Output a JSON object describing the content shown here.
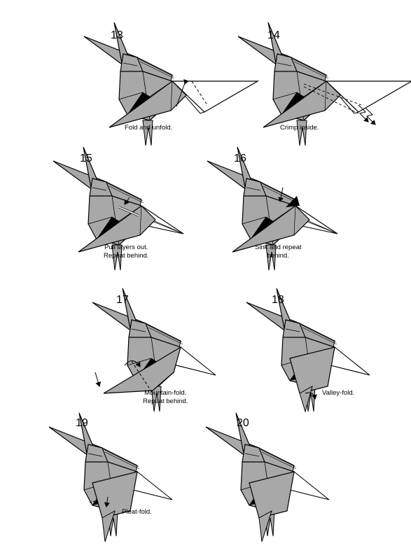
{
  "diagram": {
    "colors": {
      "paper": "#a8a8a8",
      "paper_light": "#ffffff",
      "ink": "#000000"
    },
    "steps": [
      {
        "number": "13",
        "caption": [
          "Fold and unfold."
        ]
      },
      {
        "number": "14",
        "caption": [
          "Crimp inside."
        ]
      },
      {
        "number": "15",
        "caption": [
          "Pull layers out.",
          "Repeat behind."
        ]
      },
      {
        "number": "16",
        "caption": [
          "Sink and repeat",
          "behind."
        ]
      },
      {
        "number": "17",
        "caption": [
          "Mountain-fold.",
          "Repeat behind."
        ]
      },
      {
        "number": "18",
        "caption": [
          "Valley-fold."
        ]
      },
      {
        "number": "19",
        "caption": [
          "Pleat-fold."
        ]
      },
      {
        "number": "20",
        "caption": []
      }
    ]
  }
}
